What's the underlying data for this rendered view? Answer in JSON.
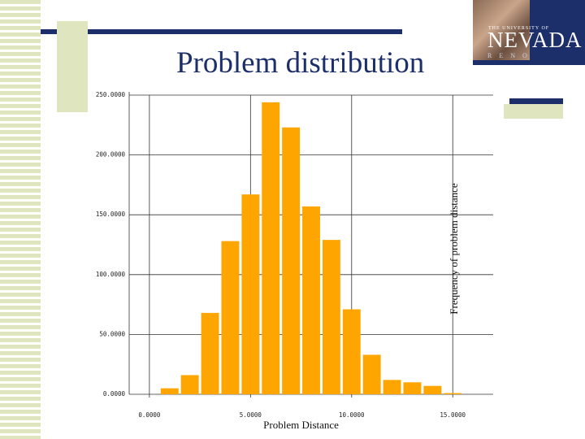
{
  "slide": {
    "title": "Problem distribution"
  },
  "logo": {
    "small_text": "THE UNIVERSITY OF",
    "big_text": "NEVADA",
    "sub_text": "RENO"
  },
  "colors": {
    "bar": "#FFA500",
    "navy": "#1c2f6b",
    "olive": "#dfe6bf"
  },
  "chart_data": {
    "type": "bar",
    "xlabel": "Problem Distance",
    "ylabel": "Frequency of problem distance",
    "x": [
      1,
      2,
      3,
      4,
      5,
      6,
      7,
      8,
      9,
      10,
      11,
      12,
      13,
      14,
      15
    ],
    "values": [
      5,
      16,
      68,
      128,
      167,
      244,
      223,
      157,
      129,
      71,
      33,
      12,
      10,
      7,
      1
    ],
    "xlim": [
      -1,
      17
    ],
    "ylim": [
      0,
      250
    ],
    "x_ticks": [
      0,
      5,
      10,
      15
    ],
    "x_tick_labels": [
      "0.0000",
      "5.0000",
      "10.0000",
      "15.0000"
    ],
    "y_ticks": [
      0,
      50,
      100,
      150,
      200,
      250
    ],
    "y_tick_labels": [
      "0.0000",
      "50.0000",
      "100.0000",
      "150.0000",
      "200.0000",
      "250.0000"
    ],
    "grid": true
  }
}
